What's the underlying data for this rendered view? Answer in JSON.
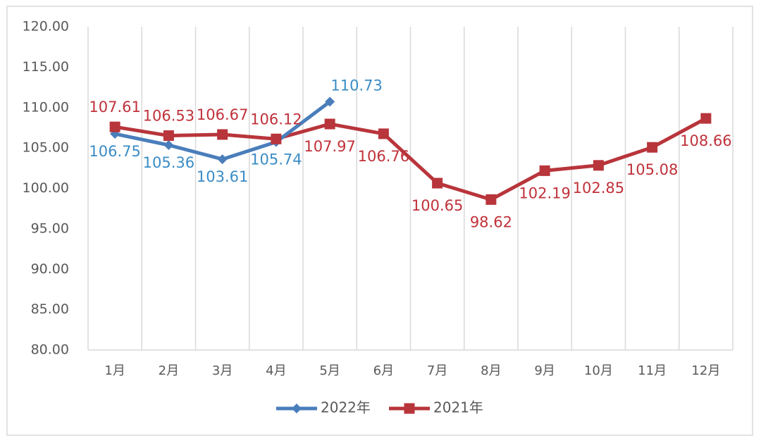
{
  "chart_data": {
    "type": "line",
    "categories": [
      "1月",
      "2月",
      "3月",
      "4月",
      "5月",
      "6月",
      "7月",
      "8月",
      "9月",
      "10月",
      "11月",
      "12月"
    ],
    "series": [
      {
        "name": "2022年",
        "color": "#4a7ebb",
        "label_color": "#3a8cc6",
        "marker": "diamond",
        "values": [
          106.75,
          105.36,
          103.61,
          105.74,
          110.73,
          null,
          null,
          null,
          null,
          null,
          null,
          null
        ]
      },
      {
        "name": "2021年",
        "color": "#b8353b",
        "label_color": "#c0313a",
        "marker": "square",
        "values": [
          107.61,
          106.53,
          106.67,
          106.12,
          107.97,
          106.76,
          100.65,
          98.62,
          102.19,
          102.85,
          105.08,
          108.66
        ]
      }
    ],
    "ylim": [
      80,
      120
    ],
    "yticks": [
      {
        "value": 80,
        "label": "80.00"
      },
      {
        "value": 85,
        "label": "85.00"
      },
      {
        "value": 90,
        "label": "90.00"
      },
      {
        "value": 95,
        "label": "95.00"
      },
      {
        "value": 100,
        "label": "100.00"
      },
      {
        "value": 105,
        "label": "105.00"
      },
      {
        "value": 110,
        "label": "110.00"
      },
      {
        "value": 115,
        "label": "115.00"
      },
      {
        "value": 120,
        "label": "120.00"
      }
    ],
    "legend": "bottom"
  }
}
